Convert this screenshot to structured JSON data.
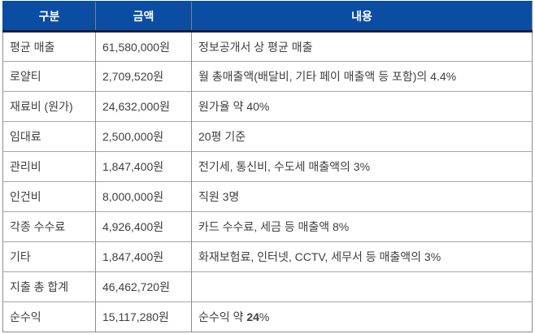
{
  "colors": {
    "header_bg": "#0b4da2",
    "header_text": "#ffffff",
    "header_bottom_border": "#141f3d",
    "grid_line": "#8c8c8c",
    "row_separator": "#a6a6a6",
    "body_text": "#3f3f3f"
  },
  "table": {
    "headers": {
      "category": "구분",
      "amount": "금액",
      "content": "내용"
    },
    "rows": [
      {
        "category": "평균 매출",
        "amount": "61,580,000원",
        "content": "정보공개서 상 평균 매출"
      },
      {
        "category": "로얄티",
        "amount": "2,709,520원",
        "content": "월 총매출액(배달비, 기타 페이 매출액 등 포함)의 4.4%"
      },
      {
        "category": "재료비 (원가)",
        "amount": "24,632,000원",
        "content": "원가율 약 40%"
      },
      {
        "category": "임대료",
        "amount": "2,500,000원",
        "content": "20평 기준"
      },
      {
        "category": "관리비",
        "amount": "1,847,400원",
        "content": "전기세, 통신비, 수도세 매출액의 3%"
      },
      {
        "category": "인건비",
        "amount": "8,000,000원",
        "content": "직원 3명"
      },
      {
        "category": "각종 수수료",
        "amount": "4,926,400원",
        "content": "카드 수수료, 세금 등 매출액 8%"
      },
      {
        "category": "기타",
        "amount": "1,847,400원",
        "content": "화재보험료, 인터넷, CCTV, 세무서 등 매출액의 3%"
      },
      {
        "category": "지출 총 합계",
        "amount": "46,462,720원",
        "content": ""
      },
      {
        "category": "순수익",
        "amount": "15,117,280원",
        "content_prefix": "순수익 약 ",
        "content_bold": "24",
        "content_suffix": "%"
      }
    ]
  }
}
